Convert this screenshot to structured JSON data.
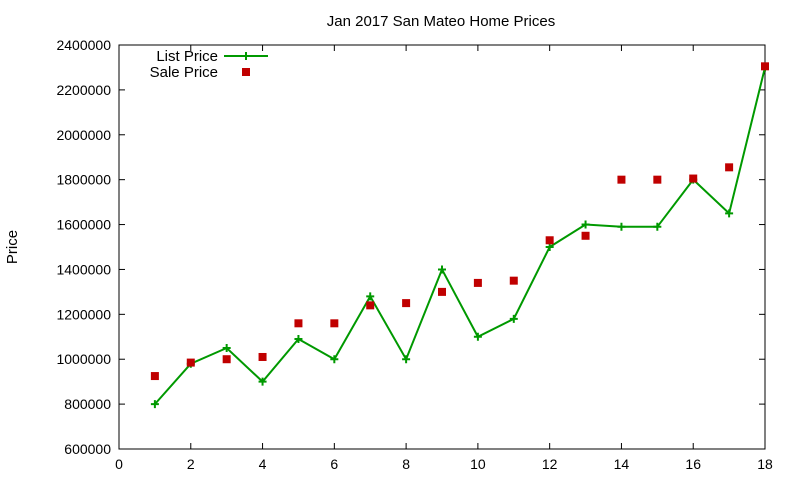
{
  "chart_data": {
    "type": "line",
    "title": "Jan 2017 San Mateo Home Prices",
    "xlabel": "",
    "ylabel": "Price",
    "xlim": [
      0,
      18
    ],
    "ylim": [
      600000,
      2400000
    ],
    "xticks": [
      0,
      2,
      4,
      6,
      8,
      10,
      12,
      14,
      16,
      18
    ],
    "yticks": [
      600000,
      800000,
      1000000,
      1200000,
      1400000,
      1600000,
      1800000,
      2000000,
      2200000,
      2400000
    ],
    "grid": false,
    "legend": "top-left",
    "series": [
      {
        "name": "List Price",
        "style": "line+cross",
        "color": "#009900",
        "x": [
          1,
          2,
          3,
          4,
          5,
          6,
          7,
          8,
          9,
          10,
          11,
          12,
          13,
          14,
          15,
          16,
          17,
          18
        ],
        "values": [
          800000,
          980000,
          1050000,
          900000,
          1090000,
          1000000,
          1280000,
          1000000,
          1400000,
          1100000,
          1180000,
          1500000,
          1600000,
          1590000,
          1590000,
          1800000,
          1650000,
          2300000
        ]
      },
      {
        "name": "Sale Price",
        "style": "square",
        "color": "#c00000",
        "x": [
          1,
          2,
          3,
          4,
          5,
          6,
          7,
          8,
          9,
          10,
          11,
          12,
          13,
          14,
          15,
          16,
          17,
          18
        ],
        "values": [
          925000,
          985000,
          1000000,
          1010000,
          1160000,
          1160000,
          1240000,
          1250000,
          1300000,
          1340000,
          1350000,
          1530000,
          1550000,
          1800000,
          1800000,
          1805000,
          1855000,
          2305000
        ]
      }
    ]
  }
}
